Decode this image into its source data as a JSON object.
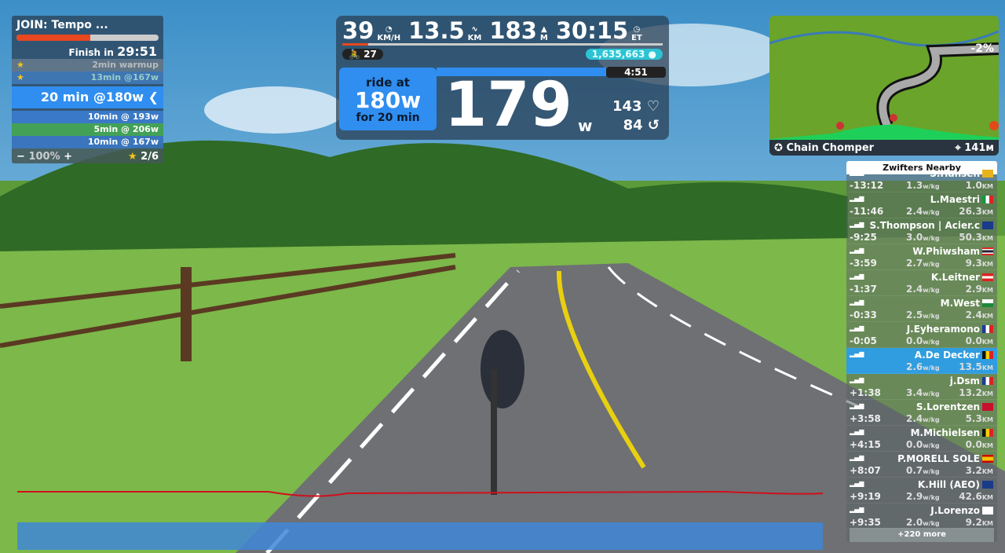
{
  "workout": {
    "title": "JOIN: Tempo ...",
    "progress_pct": 52,
    "finish_label": "Finish in",
    "finish_time": "29:51",
    "steps": [
      {
        "label": "2min warmup",
        "state": "done",
        "star": true
      },
      {
        "label": "13min @167w",
        "state": "done",
        "star": true
      },
      {
        "label": "20 min @180w",
        "state": "current"
      },
      {
        "label": "10min @ 193w"
      },
      {
        "label": "5min @ 206w"
      },
      {
        "label": "10min @ 167w"
      }
    ],
    "intensity": "100%",
    "minus": "−",
    "plus": "+",
    "stars": "2/6"
  },
  "hud": {
    "speed": "39",
    "speed_unit": "KM/H",
    "distance": "13.5",
    "distance_unit": "KM",
    "elevation": "183",
    "elevation_unit": "M",
    "time": "30:15",
    "time_unit": "ET",
    "riders": "27",
    "drops": "1,635,663",
    "target_top": "ride at",
    "target_watts": "180w",
    "target_bottom": "for 20 min",
    "interval_remaining": "4:51",
    "interval_progress_pct": 76,
    "power": "179",
    "power_unit": "w",
    "heart_rate": "143",
    "cadence": "84"
  },
  "map": {
    "segment": "Chain Chomper",
    "distance": "141м",
    "grade": "-2%"
  },
  "nearby": {
    "title": "Zwifters Nearby",
    "more": "+220 more",
    "riders": [
      {
        "name": "S.Hansen",
        "gap": "-13:12",
        "wkg": "1.3",
        "km": "1.0",
        "flag": "#e8b31a"
      },
      {
        "name": "L.Maestri",
        "gap": "-11:46",
        "wkg": "2.4",
        "km": "26.3",
        "flag": "it"
      },
      {
        "name": "S.Thompson | Acier.c",
        "gap": "-9:25",
        "wkg": "3.0",
        "km": "50.3",
        "flag": "gb"
      },
      {
        "name": "W.Phiwsham",
        "gap": "-3:59",
        "wkg": "2.7",
        "km": "9.3",
        "flag": "th"
      },
      {
        "name": "K.Leitner",
        "gap": "-1:37",
        "wkg": "2.4",
        "km": "2.9",
        "flag": "at"
      },
      {
        "name": "M.West",
        "gap": "-0:33",
        "wkg": "2.5",
        "km": "2.4",
        "flag": "wales"
      },
      {
        "name": "J.Eyheramono",
        "gap": "-0:05",
        "wkg": "0.0",
        "km": "0.0",
        "flag": "fr"
      },
      {
        "name": "A.De Decker",
        "gap": "",
        "wkg": "2.6",
        "km": "13.5",
        "flag": "be",
        "me": true
      },
      {
        "name": "j.Dsm",
        "gap": "+1:38",
        "wkg": "3.4",
        "km": "13.2",
        "flag": "fr"
      },
      {
        "name": "S.Lorentzen",
        "gap": "+3:58",
        "wkg": "2.4",
        "km": "5.3",
        "flag": "dk"
      },
      {
        "name": "M.Michielsen",
        "gap": "+4:15",
        "wkg": "0.0",
        "km": "0.0",
        "flag": "be"
      },
      {
        "name": "P.MORELL SOLE",
        "gap": "+8:07",
        "wkg": "0.7",
        "km": "3.2",
        "flag": "es"
      },
      {
        "name": "K.Hill (AEO)",
        "gap": "+9:19",
        "wkg": "2.9",
        "km": "42.6",
        "flag": "gb"
      },
      {
        "name": "J.Lorenzo",
        "gap": "+9:35",
        "wkg": "2.0",
        "km": "9.2",
        "flag": "other"
      }
    ],
    "wkg_unit": "w/kg",
    "km_unit": "KM"
  },
  "colors": {
    "accent": "#2f8ef0",
    "progress": "#e8471f",
    "drops": "#2cc4d4",
    "power_line": "#d0101c"
  }
}
